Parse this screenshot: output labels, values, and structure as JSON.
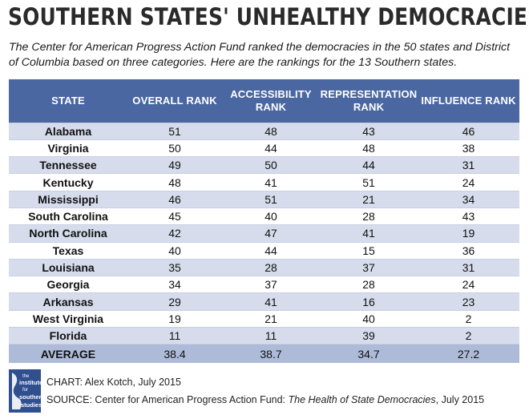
{
  "title": "SOUTHERN STATES' UNHEALTHY DEMOCRACIES",
  "intro": "The Center for American Progress Action Fund ranked the democracies in the 50 states and District of Columbia based on three categories. Here are the rankings for the 13 Southern states.",
  "colors": {
    "header": "#4a67a2",
    "band": "#d6dcec",
    "average": "#aebbd8"
  },
  "chart_data": {
    "type": "table",
    "columns": [
      "STATE",
      "OVERALL RANK",
      "ACCESSIBILITY RANK",
      "REPRESENTATION RANK",
      "INFLUENCE RANK"
    ],
    "rows": [
      [
        "Alabama",
        "51",
        "48",
        "43",
        "46"
      ],
      [
        "Virginia",
        "50",
        "44",
        "48",
        "38"
      ],
      [
        "Tennessee",
        "49",
        "50",
        "44",
        "31"
      ],
      [
        "Kentucky",
        "48",
        "41",
        "51",
        "24"
      ],
      [
        "Mississippi",
        "46",
        "51",
        "21",
        "34"
      ],
      [
        "South Carolina",
        "45",
        "40",
        "28",
        "43"
      ],
      [
        "North Carolina",
        "42",
        "47",
        "41",
        "19"
      ],
      [
        "Texas",
        "40",
        "44",
        "15",
        "36"
      ],
      [
        "Louisiana",
        "35",
        "28",
        "37",
        "31"
      ],
      [
        "Georgia",
        "34",
        "37",
        "28",
        "24"
      ],
      [
        "Arkansas",
        "29",
        "41",
        "16",
        "23"
      ],
      [
        "West Virginia",
        "19",
        "21",
        "40",
        "2"
      ],
      [
        "Florida",
        "11",
        "11",
        "39",
        "2"
      ]
    ],
    "average": [
      "AVERAGE",
      "38.4",
      "38.7",
      "34.7",
      "27.2"
    ]
  },
  "logo": {
    "lines": [
      "the",
      "institute",
      "for",
      "southern",
      "studies"
    ]
  },
  "credits": {
    "chart": "CHART: Alex Kotch, July 2015",
    "source_prefix": "SOURCE: Center for American Progress Action Fund: ",
    "source_title": "The Health of State Democracies",
    "source_suffix": ", July 2015"
  }
}
